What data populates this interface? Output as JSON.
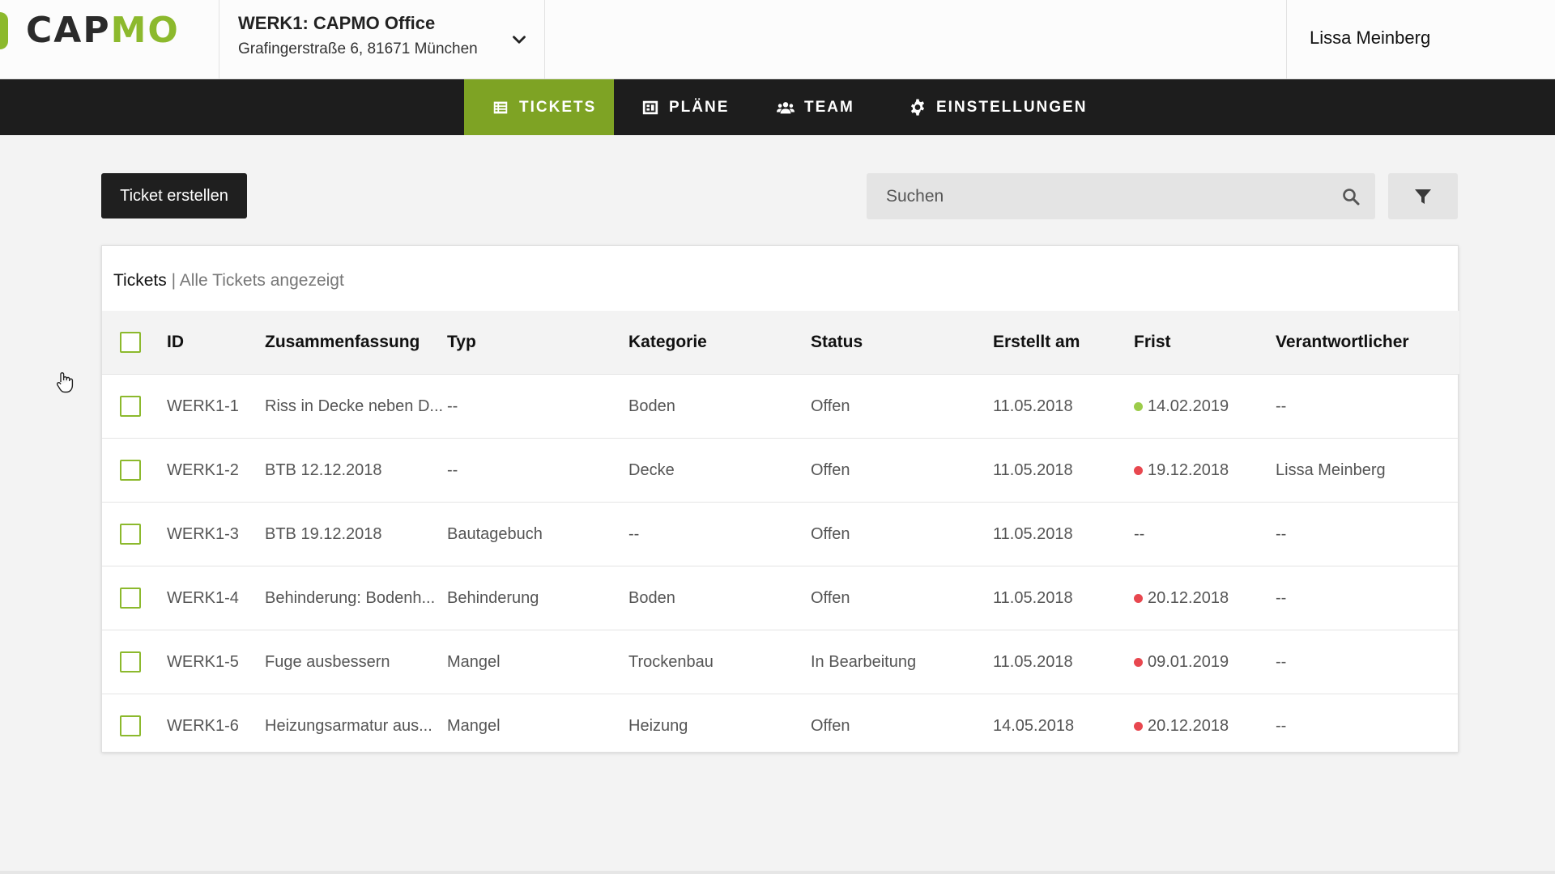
{
  "brand": {
    "logo_left": "CAP",
    "logo_right": "MO",
    "accent": "#8cb92d",
    "nav_active": "#7ea324"
  },
  "project": {
    "name": "WERK1: CAPMO Office",
    "address": "Grafingerstraße 6, 81671 München"
  },
  "user": {
    "name": "Lissa Meinberg"
  },
  "nav": [
    {
      "label": "TICKETS",
      "icon": "list-icon",
      "active": true
    },
    {
      "label": "PLÄNE",
      "icon": "plans-icon",
      "active": false
    },
    {
      "label": "TEAM",
      "icon": "users-icon",
      "active": false
    },
    {
      "label": "EINSTELLUNGEN",
      "icon": "gear-icon",
      "active": false
    }
  ],
  "toolbar": {
    "create_label": "Ticket erstellen",
    "search_placeholder": "Suchen"
  },
  "table": {
    "title": "Tickets",
    "subtitle": "| Alle Tickets angezeigt",
    "headers": [
      "ID",
      "Zusammenfassung",
      "Typ",
      "Kategorie",
      "Status",
      "Erstellt am",
      "Frist",
      "Verantwortlicher"
    ],
    "rows": [
      {
        "id": "WERK1-1",
        "summary": "Riss in Decke neben D...",
        "type": "--",
        "category": "Boden",
        "status": "Offen",
        "created": "11.05.2018",
        "deadline": "14.02.2019",
        "deadline_color": "#9ccc4a",
        "owner": "--"
      },
      {
        "id": "WERK1-2",
        "summary": "BTB 12.12.2018",
        "type": "--",
        "category": "Decke",
        "status": "Offen",
        "created": "11.05.2018",
        "deadline": "19.12.2018",
        "deadline_color": "#e8474f",
        "owner": "Lissa Meinberg"
      },
      {
        "id": "WERK1-3",
        "summary": "BTB 19.12.2018",
        "type": "Bautagebuch",
        "category": "--",
        "status": "Offen",
        "created": "11.05.2018",
        "deadline": "--",
        "deadline_color": "",
        "owner": "--"
      },
      {
        "id": "WERK1-4",
        "summary": "Behinderung: Bodenh...",
        "type": "Behinderung",
        "category": "Boden",
        "status": "Offen",
        "created": "11.05.2018",
        "deadline": "20.12.2018",
        "deadline_color": "#e8474f",
        "owner": "--"
      },
      {
        "id": "WERK1-5",
        "summary": "Fuge ausbessern",
        "type": "Mangel",
        "category": "Trockenbau",
        "status": "In Bearbeitung",
        "created": "11.05.2018",
        "deadline": "09.01.2019",
        "deadline_color": "#e8474f",
        "owner": "--"
      },
      {
        "id": "WERK1-6",
        "summary": "Heizungsarmatur aus...",
        "type": "Mangel",
        "category": "Heizung",
        "status": "Offen",
        "created": "14.05.2018",
        "deadline": "20.12.2018",
        "deadline_color": "#e8474f",
        "owner": "--"
      }
    ]
  }
}
